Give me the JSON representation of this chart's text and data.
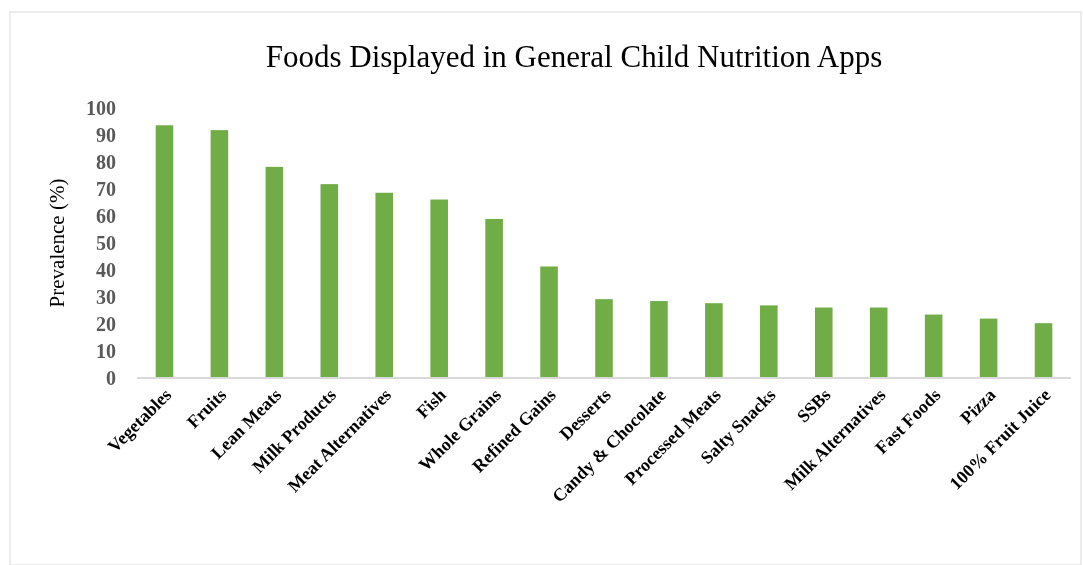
{
  "chart_data": {
    "type": "bar",
    "title": "Foods Displayed in General Child Nutrition Apps",
    "ylabel": "Prevalence (%)",
    "categories": [
      "Vegetables",
      "Fruits",
      "Lean Meats",
      "Milk Products",
      "Meat Alternatives",
      "Fish",
      "Whole Grains",
      "Refined Gains",
      "Desserts",
      "Candy & Chocolate",
      "Processed Meats",
      "Salty Snacks",
      "SSBs",
      "Milk Alternatives",
      "Fast Foods",
      "Pizza",
      "100% Fruit Juice"
    ],
    "values": [
      93.6,
      91.8,
      78.2,
      71.8,
      68.6,
      66.1,
      58.9,
      41.3,
      29.2,
      28.5,
      27.7,
      26.9,
      26.1,
      26.1,
      23.5,
      22.0,
      20.3
    ],
    "color": "#70ad47",
    "ylim": [
      0,
      100
    ],
    "yticks": [
      0,
      10,
      20,
      30,
      40,
      50,
      60,
      70,
      80,
      90,
      100
    ],
    "grid": false
  }
}
